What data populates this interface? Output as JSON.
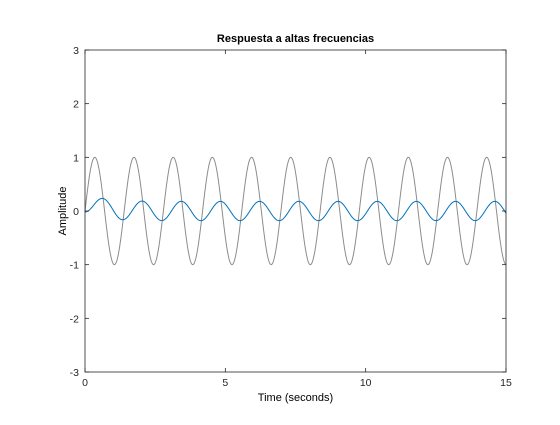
{
  "chart_data": {
    "type": "line",
    "title": "Respuesta a altas frecuencias",
    "xlabel": "Time (seconds)",
    "ylabel": "Amplitude",
    "xlim": [
      0,
      15
    ],
    "ylim": [
      -3,
      3
    ],
    "xticks": [
      0,
      5,
      10,
      15
    ],
    "yticks": [
      -3,
      -2,
      -1,
      0,
      1,
      2,
      3
    ],
    "grid": false,
    "series": [
      {
        "role": "input",
        "color": "#8c8c8c",
        "function": "sin",
        "amplitude": 1,
        "angular_frequency": 4.5,
        "t_range": [
          0,
          15
        ]
      },
      {
        "role": "response",
        "color": "#0072bd",
        "function": "sin-lagged",
        "amplitude": 0.18,
        "angular_frequency": 4.5,
        "phase": -1.3,
        "transient": 0.18,
        "t_range": [
          0,
          15
        ]
      }
    ]
  }
}
